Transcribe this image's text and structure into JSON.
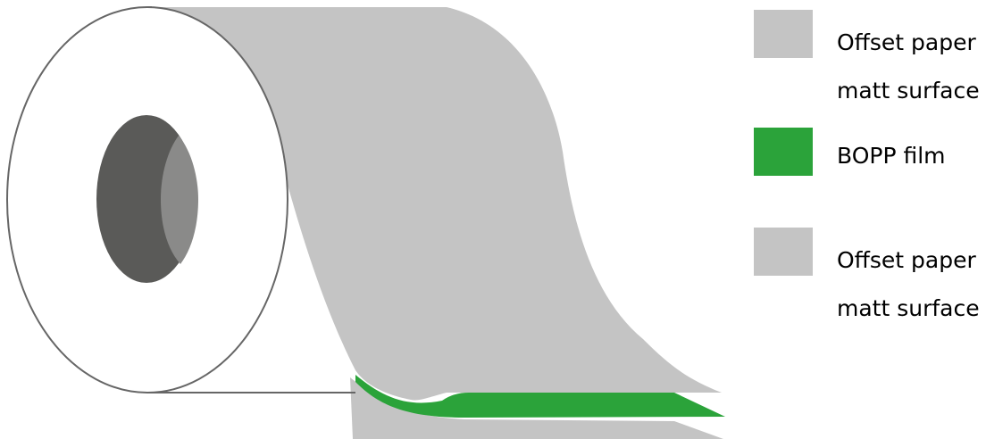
{
  "colors": {
    "paper": "#c4c4c4",
    "film": "#2ba33a",
    "roll_face": "#ffffff",
    "roll_outline": "#666666",
    "core_dark": "#5a5a58",
    "core_light": "#8a8a89"
  },
  "legend": [
    {
      "swatch_color": "#c4c4c4",
      "lines": [
        "Offset paper",
        "matt surface"
      ]
    },
    {
      "swatch_color": "#2ba33a",
      "lines": [
        "BOPP film"
      ]
    },
    {
      "swatch_color": "#c4c4c4",
      "lines": [
        "Offset paper",
        "matt surface"
      ]
    }
  ]
}
